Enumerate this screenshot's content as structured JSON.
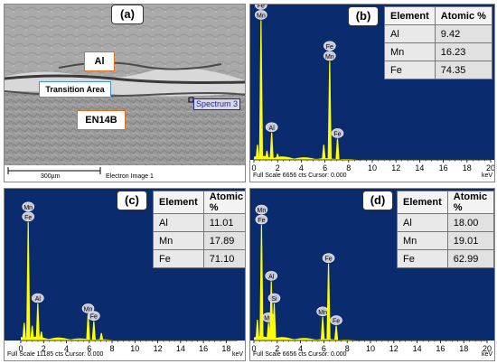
{
  "panel_a": {
    "letter": "(a)",
    "label_al": "Al",
    "label_transition": "Transition Area",
    "label_en14b": "EN14B",
    "spectrum_label": "Spectrum 3",
    "scale_bar": "300µm",
    "image_label": "Electron Image 1"
  },
  "colors": {
    "spectrum_bg": "#0a2b6e",
    "peak": "#ffff00",
    "label_box_border": "#e07020",
    "transition_box_border": "#4a8fd0"
  },
  "panels": [
    {
      "id": "b",
      "letter": "(b)",
      "footer": "Full Scale 6656 cts Cursor: 0.000",
      "unit": "keV",
      "ticks": [
        "0",
        "2",
        "4",
        "6",
        "8",
        "10",
        "12",
        "14",
        "16",
        "18",
        "20"
      ],
      "table": {
        "header": [
          "Element",
          "Atomic  %"
        ],
        "rows": [
          [
            "Al",
            "9.42"
          ],
          [
            "Mn",
            "16.23"
          ],
          [
            "Fe",
            "74.35"
          ]
        ]
      }
    },
    {
      "id": "c",
      "letter": "(c)",
      "footer": "Full Scale 11185 cts Cursor: 0.000",
      "unit": "keV",
      "ticks": [
        "0",
        "2",
        "4",
        "6",
        "8",
        "10",
        "12",
        "14",
        "16",
        "18"
      ],
      "table": {
        "header": [
          "Element",
          "Atomic  %"
        ],
        "rows": [
          [
            "Al",
            "11.01"
          ],
          [
            "Mn",
            "17.89"
          ],
          [
            "Fe",
            "71.10"
          ]
        ]
      }
    },
    {
      "id": "d",
      "letter": "(d)",
      "footer": "Full Scale 6656 cts Cursor: 0.000",
      "unit": "keV",
      "ticks": [
        "0",
        "2",
        "4",
        "6",
        "8",
        "10",
        "12",
        "14",
        "16",
        "18",
        "20"
      ],
      "table": {
        "header": [
          "Element",
          "Atomic  %"
        ],
        "rows": [
          [
            "Al",
            "18.00"
          ],
          [
            "Mn",
            "19.01"
          ],
          [
            "Fe",
            "62.99"
          ]
        ]
      }
    }
  ],
  "chart_data": [
    {
      "type": "bar",
      "panel": "b",
      "xlabel": "keV",
      "xlim": [
        0,
        20
      ],
      "peaks": [
        {
          "x": 0.3,
          "height": 0.1
        },
        {
          "x": 0.6,
          "height": 0.92,
          "labels": [
            "Fe",
            "Mn"
          ]
        },
        {
          "x": 1.1,
          "height": 0.06
        },
        {
          "x": 1.5,
          "height": 0.18,
          "labels": [
            "Al"
          ]
        },
        {
          "x": 2.0,
          "height": 0.04
        },
        {
          "x": 5.9,
          "height": 0.1
        },
        {
          "x": 6.4,
          "height": 0.65,
          "labels": [
            "Fe",
            "Mn"
          ]
        },
        {
          "x": 7.06,
          "height": 0.14,
          "labels": [
            "Fe"
          ]
        }
      ]
    },
    {
      "type": "bar",
      "panel": "c",
      "xlabel": "keV",
      "xlim": [
        0,
        19
      ],
      "peaks": [
        {
          "x": 0.3,
          "height": 0.12
        },
        {
          "x": 0.65,
          "height": 0.8,
          "labels": [
            "Mn",
            "Fe"
          ]
        },
        {
          "x": 1.0,
          "height": 0.1
        },
        {
          "x": 1.49,
          "height": 0.25,
          "labels": [
            "Al"
          ]
        },
        {
          "x": 1.8,
          "height": 0.06
        },
        {
          "x": 5.9,
          "height": 0.18,
          "labels": [
            "Mn"
          ]
        },
        {
          "x": 6.4,
          "height": 0.13,
          "labels": [
            "Fe"
          ]
        },
        {
          "x": 7.06,
          "height": 0.05
        }
      ]
    },
    {
      "type": "bar",
      "panel": "d",
      "xlabel": "keV",
      "xlim": [
        0,
        20
      ],
      "peaks": [
        {
          "x": 0.3,
          "height": 0.14
        },
        {
          "x": 0.65,
          "height": 0.78,
          "labels": [
            "Mn",
            "Fe"
          ]
        },
        {
          "x": 1.25,
          "height": 0.12,
          "labels": [
            "Mg"
          ]
        },
        {
          "x": 1.49,
          "height": 0.4,
          "labels": [
            "Al"
          ]
        },
        {
          "x": 1.74,
          "height": 0.25,
          "labels": [
            "Si"
          ]
        },
        {
          "x": 5.9,
          "height": 0.16,
          "labels": [
            "Mn"
          ]
        },
        {
          "x": 6.4,
          "height": 0.52,
          "labels": [
            "Fe"
          ]
        },
        {
          "x": 7.06,
          "height": 0.1,
          "labels": [
            "Fe"
          ]
        }
      ]
    }
  ]
}
